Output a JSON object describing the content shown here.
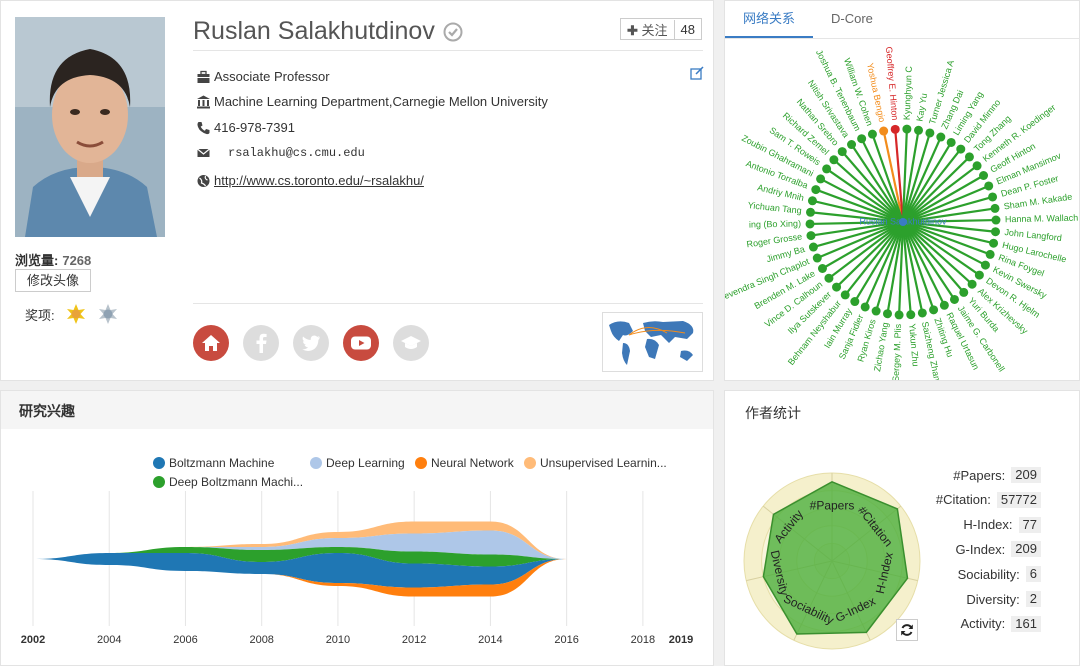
{
  "profile": {
    "name": "Ruslan Salakhutdinov",
    "follow_label": "关注",
    "follow_count": "48",
    "position": "Associate Professor",
    "affiliation": "Machine Learning Department,Carnegie Mellon University",
    "phone": "416-978-7391",
    "email": "rsalakhu@cs.cmu.edu",
    "homepage": "http://www.cs.toronto.edu/~rsalakhu/",
    "views_label": "浏览量:",
    "views": "7268",
    "avatar_button": "修改头像",
    "awards_label": "奖项:"
  },
  "network": {
    "tabs": [
      "网络关系",
      "D-Core"
    ],
    "center": "Ruslan Salakhutdinov",
    "nodes": [
      {
        "name": "Yoshua Bengio",
        "color": "#f28c1c"
      },
      {
        "name": "Geoffrey E. Hinton",
        "color": "#d62728"
      },
      {
        "name": "Kyunghyun C",
        "color": "#2ca02c"
      },
      {
        "name": "Kay Yu",
        "color": "#2ca02c"
      },
      {
        "name": "Turner Jessica A",
        "color": "#2ca02c"
      },
      {
        "name": "Zhang Dai",
        "color": "#2ca02c"
      },
      {
        "name": "Liming Yang",
        "color": "#2ca02c"
      },
      {
        "name": "David Mimno",
        "color": "#2ca02c"
      },
      {
        "name": "Tong Zhang",
        "color": "#2ca02c"
      },
      {
        "name": "Kenneth R. Koedinger",
        "color": "#2ca02c"
      },
      {
        "name": "Geoff Hinton",
        "color": "#2ca02c"
      },
      {
        "name": "Elman Mansimov",
        "color": "#2ca02c"
      },
      {
        "name": "Dean P. Foster",
        "color": "#2ca02c"
      },
      {
        "name": "Sham M. Kakade",
        "color": "#2ca02c"
      },
      {
        "name": "Hanna M. Wallach",
        "color": "#2ca02c"
      },
      {
        "name": "John Langford",
        "color": "#2ca02c"
      },
      {
        "name": "Hugo Larochelle",
        "color": "#2ca02c"
      },
      {
        "name": "Rina Foygel",
        "color": "#2ca02c"
      },
      {
        "name": "Kevin Swersky",
        "color": "#2ca02c"
      },
      {
        "name": "Devon R. Hjelm",
        "color": "#2ca02c"
      },
      {
        "name": "Alex Krizhevsky",
        "color": "#2ca02c"
      },
      {
        "name": "Yuri Burda",
        "color": "#2ca02c"
      },
      {
        "name": "Jaime G. Carbonell",
        "color": "#2ca02c"
      },
      {
        "name": "Raquel Urtasun",
        "color": "#2ca02c"
      },
      {
        "name": "Zhiting Hu",
        "color": "#2ca02c"
      },
      {
        "name": "Saizheng Zhang",
        "color": "#2ca02c"
      },
      {
        "name": "Yukun Zhu",
        "color": "#2ca02c"
      },
      {
        "name": "Sergey M. Plis",
        "color": "#2ca02c"
      },
      {
        "name": "Zichao Yang",
        "color": "#2ca02c"
      },
      {
        "name": "Ryan Kiros",
        "color": "#2ca02c"
      },
      {
        "name": "Sanja Fidler",
        "color": "#2ca02c"
      },
      {
        "name": "Iain Murray",
        "color": "#2ca02c"
      },
      {
        "name": "Behnam Neyshabur",
        "color": "#2ca02c"
      },
      {
        "name": "Ilya Sutskever",
        "color": "#2ca02c"
      },
      {
        "name": "Vince D. Calhoun",
        "color": "#2ca02c"
      },
      {
        "name": "Brenden M. Lake",
        "color": "#2ca02c"
      },
      {
        "name": "Devendra Singh Chaplot",
        "color": "#2ca02c"
      },
      {
        "name": "Jimmy Ba",
        "color": "#2ca02c"
      },
      {
        "name": "Roger Grosse",
        "color": "#2ca02c"
      },
      {
        "name": "ing (Bo Xing)",
        "color": "#2ca02c"
      },
      {
        "name": "Yichuan Tang",
        "color": "#2ca02c"
      },
      {
        "name": "Andriy Mnih",
        "color": "#2ca02c"
      },
      {
        "name": "Antonio Torralba",
        "color": "#2ca02c"
      },
      {
        "name": "Zoubin Ghahramani",
        "color": "#2ca02c"
      },
      {
        "name": "Sam T. Roweis",
        "color": "#2ca02c"
      },
      {
        "name": "Richard Zemel",
        "color": "#2ca02c"
      },
      {
        "name": "Nathan Srebro",
        "color": "#2ca02c"
      },
      {
        "name": "Nitish Srivastava",
        "color": "#2ca02c"
      },
      {
        "name": "Joshua B. Tenenbaum",
        "color": "#2ca02c"
      },
      {
        "name": "William W. Cohen",
        "color": "#2ca02c"
      }
    ]
  },
  "interests": {
    "title": "研究兴趣",
    "legend": [
      {
        "name": "Boltzmann Machine",
        "color": "#1f77b4"
      },
      {
        "name": "Deep Learning",
        "color": "#aec7e8"
      },
      {
        "name": "Neural Network",
        "color": "#ff7f0e"
      },
      {
        "name": "Unsupervised Learnin...",
        "color": "#ffbb78"
      },
      {
        "name": "Deep Boltzmann Machi...",
        "color": "#2ca02c"
      }
    ],
    "ticks": [
      "2002",
      "2004",
      "2006",
      "2008",
      "2010",
      "2012",
      "2014",
      "2016",
      "2018",
      "2019"
    ]
  },
  "chart_data": {
    "type": "area",
    "x": [
      2002,
      2004,
      2006,
      2008,
      2010,
      2012,
      2014,
      2016
    ],
    "xlim": [
      2002,
      2019
    ],
    "series": [
      {
        "name": "Boltzmann Machine",
        "values": [
          0,
          2,
          3,
          2,
          5,
          4,
          3,
          0
        ]
      },
      {
        "name": "Deep Learning",
        "values": [
          0,
          0,
          0,
          0.5,
          1.5,
          3,
          4,
          0
        ]
      },
      {
        "name": "Neural Network",
        "values": [
          0,
          0,
          0,
          0,
          0.5,
          1.5,
          2,
          0
        ]
      },
      {
        "name": "Unsupervised Learnin...",
        "values": [
          0,
          0,
          0,
          0.5,
          1,
          2,
          1.5,
          0
        ]
      },
      {
        "name": "Deep Boltzmann Machi...",
        "values": [
          0,
          0,
          1,
          2,
          1,
          2,
          2,
          0
        ]
      }
    ]
  },
  "stats": {
    "title": "作者统计",
    "items": [
      {
        "label": "#Papers:",
        "value": "209"
      },
      {
        "label": "#Citation:",
        "value": "57772"
      },
      {
        "label": "H-Index:",
        "value": "77"
      },
      {
        "label": "G-Index:",
        "value": "209"
      },
      {
        "label": "Sociability:",
        "value": "6"
      },
      {
        "label": "Diversity:",
        "value": "2"
      },
      {
        "label": "Activity:",
        "value": "161"
      }
    ],
    "radar_axes": [
      "#Papers",
      "#Citation",
      "H-Index",
      "G-Index",
      "Sociability",
      "Diversity",
      "Activity"
    ],
    "radar_levels": [
      0.9,
      0.95,
      0.88,
      0.9,
      0.92,
      0.8,
      0.85
    ]
  }
}
